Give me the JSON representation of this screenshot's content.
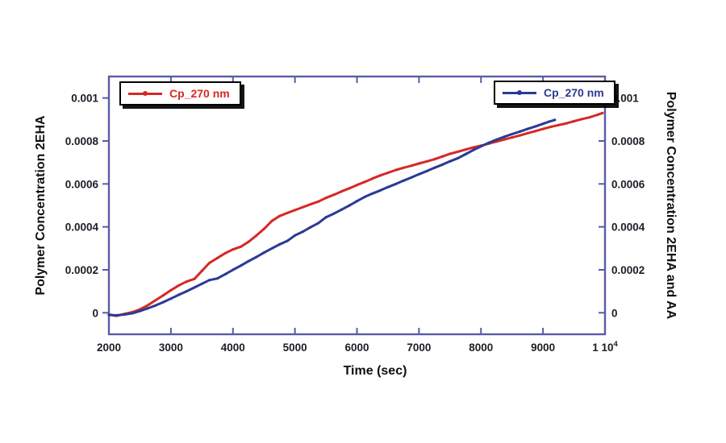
{
  "figure": {
    "background": "#ffffff"
  },
  "chart_data": {
    "type": "line",
    "title": "",
    "xlabel": "Time (sec)",
    "ylabel_left": "Polymer Concentration 2EHA",
    "ylabel_right": "Polymer Concentration 2EHA and AA",
    "xlim": [
      2000,
      10000
    ],
    "ylim": [
      -0.0001,
      0.0011
    ],
    "grid": false,
    "frame_color": "#5b5aa6",
    "tick_label_color": "#1d1d26",
    "axis_title_color": "#0e0e14",
    "x_ticks": [
      2000,
      3000,
      4000,
      5000,
      6000,
      7000,
      8000,
      9000,
      10000
    ],
    "x_tick_labels": [
      "2000",
      "3000",
      "4000",
      "5000",
      "6000",
      "7000",
      "8000",
      "9000",
      "1 10^4"
    ],
    "y_ticks": [
      0,
      0.0002,
      0.0004,
      0.0006,
      0.0008,
      0.001
    ],
    "y_tick_labels": [
      "0",
      "0.0002",
      "0.0004",
      "0.0006",
      "0.0008",
      "0.001"
    ],
    "legend": [
      {
        "label": "Cp_270 nm",
        "color": "#d42a26",
        "anchor": "top-left"
      },
      {
        "label": "Cp_270 nm",
        "color": "#2b3a94",
        "anchor": "top-right"
      }
    ],
    "series": [
      {
        "name": "Cp_270 nm",
        "axis": "left",
        "color": "#d42a26",
        "points": [
          [
            2000,
            -8e-06
          ],
          [
            2120,
            -1.4e-05
          ],
          [
            2250,
            -6e-06
          ],
          [
            2380,
            3e-06
          ],
          [
            2500,
            1.6e-05
          ],
          [
            2620,
            3.4e-05
          ],
          [
            2750,
            5.8e-05
          ],
          [
            2880,
            8.2e-05
          ],
          [
            3000,
            0.000105
          ],
          [
            3130,
            0.000128
          ],
          [
            3250,
            0.000145
          ],
          [
            3380,
            0.000158
          ],
          [
            3500,
            0.000195
          ],
          [
            3620,
            0.000232
          ],
          [
            3750,
            0.000255
          ],
          [
            3880,
            0.000278
          ],
          [
            4000,
            0.000295
          ],
          [
            4130,
            0.000308
          ],
          [
            4250,
            0.00033
          ],
          [
            4380,
            0.00036
          ],
          [
            4500,
            0.00039
          ],
          [
            4630,
            0.000428
          ],
          [
            4750,
            0.00045
          ],
          [
            4880,
            0.000465
          ],
          [
            5000,
            0.000478
          ],
          [
            5130,
            0.000492
          ],
          [
            5250,
            0.000505
          ],
          [
            5380,
            0.000518
          ],
          [
            5500,
            0.000535
          ],
          [
            5630,
            0.00055
          ],
          [
            5750,
            0.000565
          ],
          [
            5880,
            0.00058
          ],
          [
            6000,
            0.000595
          ],
          [
            6130,
            0.00061
          ],
          [
            6250,
            0.000625
          ],
          [
            6380,
            0.00064
          ],
          [
            6500,
            0.000652
          ],
          [
            6630,
            0.000665
          ],
          [
            6750,
            0.000675
          ],
          [
            6880,
            0.000685
          ],
          [
            7000,
            0.000695
          ],
          [
            7130,
            0.000705
          ],
          [
            7250,
            0.000715
          ],
          [
            7380,
            0.000728
          ],
          [
            7500,
            0.00074
          ],
          [
            7630,
            0.00075
          ],
          [
            7750,
            0.00076
          ],
          [
            7880,
            0.00077
          ],
          [
            8000,
            0.000778
          ],
          [
            8130,
            0.000788
          ],
          [
            8250,
            0.000797
          ],
          [
            8380,
            0.000807
          ],
          [
            8500,
            0.000816
          ],
          [
            8630,
            0.000826
          ],
          [
            8750,
            0.000836
          ],
          [
            8880,
            0.000846
          ],
          [
            9000,
            0.000856
          ],
          [
            9130,
            0.000866
          ],
          [
            9250,
            0.000874
          ],
          [
            9380,
            0.000882
          ],
          [
            9500,
            0.000892
          ],
          [
            9630,
            0.000902
          ],
          [
            9750,
            0.00091
          ],
          [
            9880,
            0.000922
          ],
          [
            9960,
            0.00093
          ]
        ]
      },
      {
        "name": "Cp_270 nm",
        "axis": "right",
        "color": "#2b3a94",
        "points": [
          [
            2000,
            -1e-05
          ],
          [
            2120,
            -1.2e-05
          ],
          [
            2250,
            -8e-06
          ],
          [
            2380,
            -2e-06
          ],
          [
            2500,
            8e-06
          ],
          [
            2620,
            2e-05
          ],
          [
            2750,
            3.4e-05
          ],
          [
            2880,
            5e-05
          ],
          [
            3000,
            6.6e-05
          ],
          [
            3130,
            8.4e-05
          ],
          [
            3250,
            0.0001
          ],
          [
            3380,
            0.000118
          ],
          [
            3500,
            0.000135
          ],
          [
            3620,
            0.000152
          ],
          [
            3750,
            0.00016
          ],
          [
            3880,
            0.00018
          ],
          [
            4000,
            0.0002
          ],
          [
            4130,
            0.00022
          ],
          [
            4250,
            0.00024
          ],
          [
            4380,
            0.00026
          ],
          [
            4500,
            0.00028
          ],
          [
            4630,
            0.0003
          ],
          [
            4750,
            0.000318
          ],
          [
            4880,
            0.000335
          ],
          [
            5000,
            0.00036
          ],
          [
            5130,
            0.000378
          ],
          [
            5250,
            0.000398
          ],
          [
            5380,
            0.000418
          ],
          [
            5500,
            0.000445
          ],
          [
            5630,
            0.000462
          ],
          [
            5750,
            0.00048
          ],
          [
            5880,
            0.0005
          ],
          [
            6000,
            0.00052
          ],
          [
            6130,
            0.00054
          ],
          [
            6250,
            0.000555
          ],
          [
            6380,
            0.00057
          ],
          [
            6500,
            0.000585
          ],
          [
            6630,
            0.0006
          ],
          [
            6750,
            0.000615
          ],
          [
            6880,
            0.00063
          ],
          [
            7000,
            0.000645
          ],
          [
            7130,
            0.00066
          ],
          [
            7250,
            0.000675
          ],
          [
            7380,
            0.00069
          ],
          [
            7500,
            0.000705
          ],
          [
            7630,
            0.00072
          ],
          [
            7750,
            0.000738
          ],
          [
            7880,
            0.000758
          ],
          [
            8000,
            0.000775
          ],
          [
            8130,
            0.000792
          ],
          [
            8250,
            0.000806
          ],
          [
            8380,
            0.00082
          ],
          [
            8500,
            0.000832
          ],
          [
            8630,
            0.000844
          ],
          [
            8750,
            0.000856
          ],
          [
            8880,
            0.000868
          ],
          [
            9000,
            0.00088
          ],
          [
            9100,
            0.00089
          ],
          [
            9190,
            0.000898
          ]
        ]
      }
    ]
  }
}
